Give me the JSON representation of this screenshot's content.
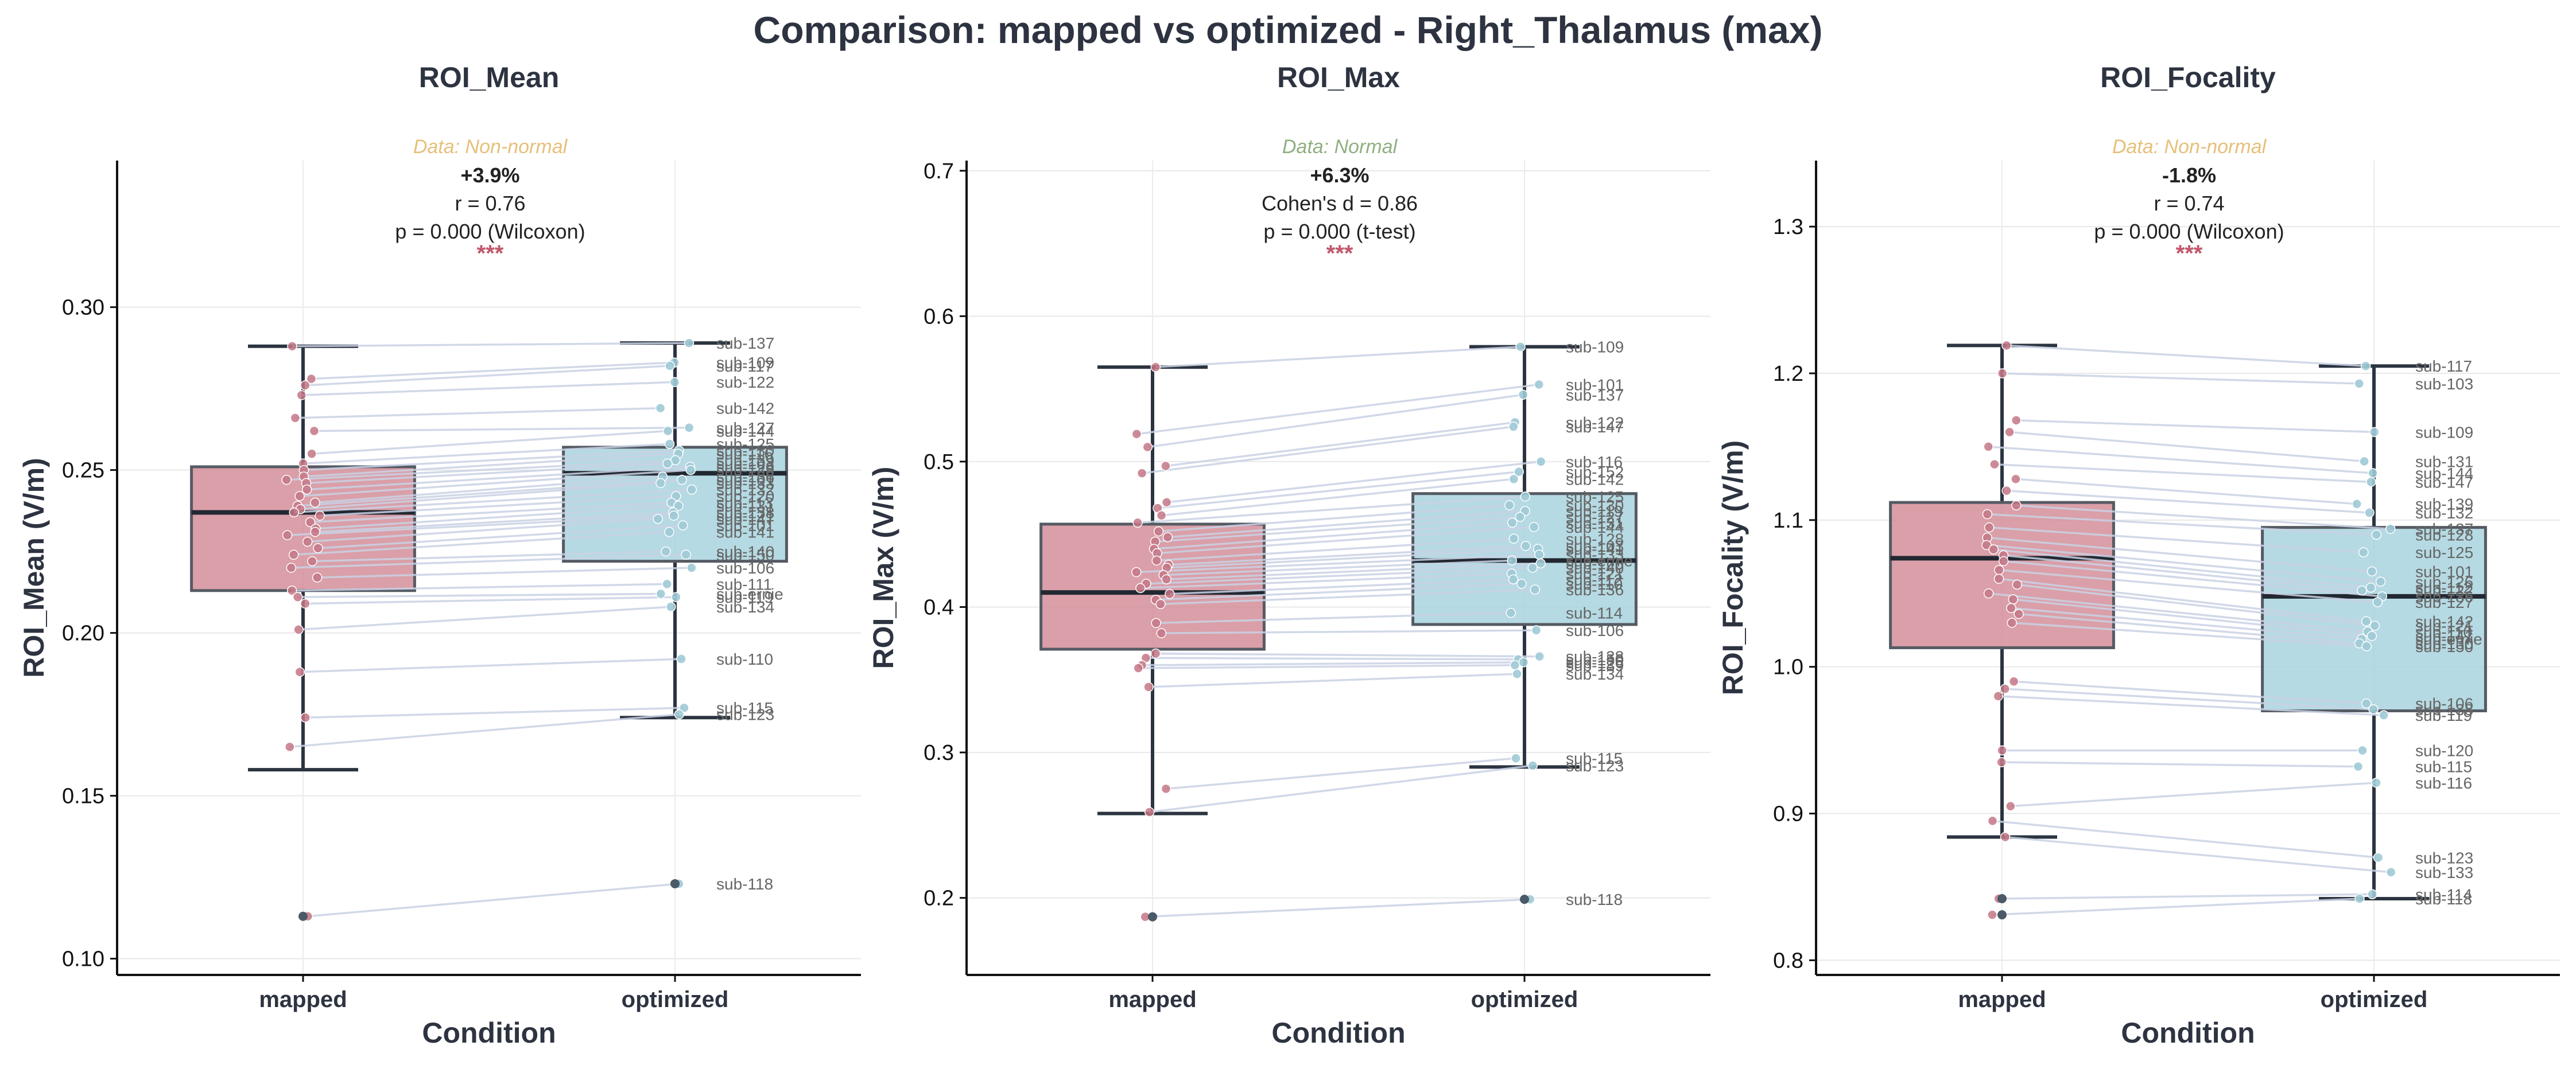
{
  "figure": {
    "title": "Comparison: mapped vs optimized - Right_Thalamus (max)",
    "colors": {
      "mapped": "#d48e99",
      "optimized": "#a9d3de",
      "mapped_point": "#c47786",
      "optimized_point": "#9fcad6",
      "outlier": "#4a5a66",
      "pair_line": "#c9d1e4",
      "normal_note": "#8fb080",
      "nonnormal_note": "#e6c07a",
      "stars": "#c0576a"
    }
  },
  "chart_data": [
    {
      "type": "box",
      "title": "ROI_Mean",
      "xlabel": "Condition",
      "ylabel": "ROI_Mean (V/m)",
      "categories": [
        "mapped",
        "optimized"
      ],
      "ylim": [
        0.095,
        0.345
      ],
      "yticks": [
        0.1,
        0.15,
        0.2,
        0.25,
        0.3
      ],
      "ytick_labels": [
        "0.10",
        "0.15",
        "0.20",
        "0.25",
        "0.30"
      ],
      "normality_note": "Data: Non-normal",
      "normal": false,
      "stats": [
        "+3.9%",
        "r = 0.76",
        "p = 0.000 (Wilcoxon)"
      ],
      "significance": "***",
      "boxes": [
        {
          "name": "mapped",
          "q1": 0.213,
          "median": 0.237,
          "q3": 0.251,
          "whisker_low": 0.158,
          "whisker_high": 0.288
        },
        {
          "name": "optimized",
          "q1": 0.222,
          "median": 0.249,
          "q3": 0.257,
          "whisker_low": 0.174,
          "whisker_high": 0.289
        }
      ],
      "pairs": [
        {
          "label": "sub-137",
          "mapped": 0.288,
          "optimized": 0.289
        },
        {
          "label": "sub-109",
          "mapped": 0.278,
          "optimized": 0.283
        },
        {
          "label": "sub-117",
          "mapped": 0.276,
          "optimized": 0.282
        },
        {
          "label": "sub-122",
          "mapped": 0.273,
          "optimized": 0.277
        },
        {
          "label": "sub-142",
          "mapped": 0.266,
          "optimized": 0.269
        },
        {
          "label": "sub-127",
          "mapped": 0.262,
          "optimized": 0.263
        },
        {
          "label": "sub-144",
          "mapped": 0.255,
          "optimized": 0.262
        },
        {
          "label": "sub-125",
          "mapped": 0.252,
          "optimized": 0.258
        },
        {
          "label": "sub-130",
          "mapped": 0.25,
          "optimized": 0.256
        },
        {
          "label": "sub-116",
          "mapped": 0.248,
          "optimized": 0.255
        },
        {
          "label": "sub-139",
          "mapped": 0.247,
          "optimized": 0.253
        },
        {
          "label": "sub-103",
          "mapped": 0.246,
          "optimized": 0.252
        },
        {
          "label": "sub-126",
          "mapped": 0.244,
          "optimized": 0.251
        },
        {
          "label": "sub-128",
          "mapped": 0.242,
          "optimized": 0.25
        },
        {
          "label": "sub-136",
          "mapped": 0.24,
          "optimized": 0.248
        },
        {
          "label": "sub-101",
          "mapped": 0.239,
          "optimized": 0.247
        },
        {
          "label": "sub-133",
          "mapped": 0.238,
          "optimized": 0.246
        },
        {
          "label": "sub-132",
          "mapped": 0.237,
          "optimized": 0.244
        },
        {
          "label": "sub-120",
          "mapped": 0.236,
          "optimized": 0.242
        },
        {
          "label": "sub-113",
          "mapped": 0.234,
          "optimized": 0.24
        },
        {
          "label": "sub-131",
          "mapped": 0.232,
          "optimized": 0.239
        },
        {
          "label": "sub-138",
          "mapped": 0.231,
          "optimized": 0.237
        },
        {
          "label": "sub-121",
          "mapped": 0.23,
          "optimized": 0.236
        },
        {
          "label": "sub-147",
          "mapped": 0.228,
          "optimized": 0.235
        },
        {
          "label": "sub-101",
          "mapped": 0.226,
          "optimized": 0.233
        },
        {
          "label": "sub-141",
          "mapped": 0.224,
          "optimized": 0.231
        },
        {
          "label": "sub-140",
          "mapped": 0.222,
          "optimized": 0.225
        },
        {
          "label": "sub-150",
          "mapped": 0.22,
          "optimized": 0.224
        },
        {
          "label": "sub-106",
          "mapped": 0.217,
          "optimized": 0.22
        },
        {
          "label": "sub-111",
          "mapped": 0.213,
          "optimized": 0.215
        },
        {
          "label": "sub-ernie",
          "mapped": 0.211,
          "optimized": 0.212
        },
        {
          "label": "sub-119",
          "mapped": 0.209,
          "optimized": 0.211
        },
        {
          "label": "sub-134",
          "mapped": 0.201,
          "optimized": 0.208
        },
        {
          "label": "sub-110",
          "mapped": 0.188,
          "optimized": 0.192
        },
        {
          "label": "sub-115",
          "mapped": 0.174,
          "optimized": 0.177
        },
        {
          "label": "sub-123",
          "mapped": 0.165,
          "optimized": 0.175
        },
        {
          "label": "sub-118",
          "mapped": 0.113,
          "optimized": 0.123
        }
      ]
    },
    {
      "type": "box",
      "title": "ROI_Max",
      "xlabel": "Condition",
      "ylabel": "ROI_Max (V/m)",
      "categories": [
        "mapped",
        "optimized"
      ],
      "ylim": [
        0.147,
        0.707
      ],
      "yticks": [
        0.2,
        0.3,
        0.4,
        0.5,
        0.6,
        0.7
      ],
      "ytick_labels": [
        "0.2",
        "0.3",
        "0.4",
        "0.5",
        "0.6",
        "0.7"
      ],
      "normality_note": "Data: Normal",
      "normal": true,
      "stats": [
        "+6.3%",
        "Cohen's d = 0.86",
        "p = 0.000 (t-test)"
      ],
      "significance": "***",
      "boxes": [
        {
          "name": "mapped",
          "q1": 0.371,
          "median": 0.41,
          "q3": 0.457,
          "whisker_low": 0.258,
          "whisker_high": 0.565
        },
        {
          "name": "optimized",
          "q1": 0.388,
          "median": 0.432,
          "q3": 0.478,
          "whisker_low": 0.29,
          "whisker_high": 0.579
        }
      ],
      "pairs": [
        {
          "label": "sub-109",
          "mapped": 0.565,
          "optimized": 0.579
        },
        {
          "label": "sub-101",
          "mapped": 0.519,
          "optimized": 0.553
        },
        {
          "label": "sub-137",
          "mapped": 0.51,
          "optimized": 0.546
        },
        {
          "label": "sub-122",
          "mapped": 0.497,
          "optimized": 0.527
        },
        {
          "label": "sub-147",
          "mapped": 0.492,
          "optimized": 0.524
        },
        {
          "label": "sub-116",
          "mapped": 0.472,
          "optimized": 0.5
        },
        {
          "label": "sub-152",
          "mapped": 0.468,
          "optimized": 0.493
        },
        {
          "label": "sub-142",
          "mapped": 0.463,
          "optimized": 0.488
        },
        {
          "label": "sub-125",
          "mapped": 0.458,
          "optimized": 0.476
        },
        {
          "label": "sub-130",
          "mapped": 0.452,
          "optimized": 0.47
        },
        {
          "label": "sub-119",
          "mapped": 0.448,
          "optimized": 0.466
        },
        {
          "label": "sub-127",
          "mapped": 0.445,
          "optimized": 0.462
        },
        {
          "label": "sub-131",
          "mapped": 0.44,
          "optimized": 0.458
        },
        {
          "label": "sub-144",
          "mapped": 0.437,
          "optimized": 0.455
        },
        {
          "label": "sub-128",
          "mapped": 0.432,
          "optimized": 0.447
        },
        {
          "label": "sub-103",
          "mapped": 0.429,
          "optimized": 0.442
        },
        {
          "label": "sub-141",
          "mapped": 0.427,
          "optimized": 0.44
        },
        {
          "label": "sub-133",
          "mapped": 0.424,
          "optimized": 0.436
        },
        {
          "label": "sub-ernie",
          "mapped": 0.422,
          "optimized": 0.432
        },
        {
          "label": "sub-120",
          "mapped": 0.419,
          "optimized": 0.43
        },
        {
          "label": "sub-140",
          "mapped": 0.416,
          "optimized": 0.427
        },
        {
          "label": "sub-121",
          "mapped": 0.413,
          "optimized": 0.423
        },
        {
          "label": "sub-112",
          "mapped": 0.409,
          "optimized": 0.419
        },
        {
          "label": "sub-110",
          "mapped": 0.405,
          "optimized": 0.416
        },
        {
          "label": "sub-136",
          "mapped": 0.402,
          "optimized": 0.412
        },
        {
          "label": "sub-114",
          "mapped": 0.389,
          "optimized": 0.396
        },
        {
          "label": "sub-106",
          "mapped": 0.382,
          "optimized": 0.384
        },
        {
          "label": "sub-138",
          "mapped": 0.368,
          "optimized": 0.366
        },
        {
          "label": "sub-150",
          "mapped": 0.365,
          "optimized": 0.364
        },
        {
          "label": "sub-126",
          "mapped": 0.36,
          "optimized": 0.362
        },
        {
          "label": "sub-139",
          "mapped": 0.358,
          "optimized": 0.36
        },
        {
          "label": "sub-134",
          "mapped": 0.345,
          "optimized": 0.354
        },
        {
          "label": "sub-115",
          "mapped": 0.275,
          "optimized": 0.296
        },
        {
          "label": "sub-123",
          "mapped": 0.259,
          "optimized": 0.291
        },
        {
          "label": "sub-118",
          "mapped": 0.187,
          "optimized": 0.199
        }
      ]
    },
    {
      "type": "box",
      "title": "ROI_Focality",
      "xlabel": "Condition",
      "ylabel": "ROI_Focality (V/m)",
      "categories": [
        "mapped",
        "optimized"
      ],
      "ylim": [
        0.79,
        1.345
      ],
      "yticks": [
        0.8,
        0.9,
        1.0,
        1.1,
        1.2,
        1.3
      ],
      "ytick_labels": [
        "0.8",
        "0.9",
        "1.0",
        "1.1",
        "1.2",
        "1.3"
      ],
      "normality_note": "Data: Non-normal",
      "normal": false,
      "stats": [
        "-1.8%",
        "r = 0.74",
        "p = 0.000 (Wilcoxon)"
      ],
      "significance": "***",
      "boxes": [
        {
          "name": "mapped",
          "q1": 1.013,
          "median": 1.074,
          "q3": 1.112,
          "whisker_low": 0.884,
          "whisker_high": 1.219
        },
        {
          "name": "optimized",
          "q1": 0.97,
          "median": 1.048,
          "q3": 1.095,
          "whisker_low": 0.842,
          "whisker_high": 1.205
        }
      ],
      "pairs": [
        {
          "label": "sub-117",
          "mapped": 1.219,
          "optimized": 1.205
        },
        {
          "label": "sub-103",
          "mapped": 1.2,
          "optimized": 1.193
        },
        {
          "label": "sub-109",
          "mapped": 1.168,
          "optimized": 1.16
        },
        {
          "label": "sub-131",
          "mapped": 1.16,
          "optimized": 1.14
        },
        {
          "label": "sub-144",
          "mapped": 1.15,
          "optimized": 1.132
        },
        {
          "label": "sub-147",
          "mapped": 1.138,
          "optimized": 1.126
        },
        {
          "label": "sub-139",
          "mapped": 1.128,
          "optimized": 1.111
        },
        {
          "label": "sub-132",
          "mapped": 1.12,
          "optimized": 1.105
        },
        {
          "label": "sub-137",
          "mapped": 1.11,
          "optimized": 1.094
        },
        {
          "label": "sub-128",
          "mapped": 1.104,
          "optimized": 1.09
        },
        {
          "label": "sub-125",
          "mapped": 1.095,
          "optimized": 1.078
        },
        {
          "label": "sub-101",
          "mapped": 1.088,
          "optimized": 1.065
        },
        {
          "label": "sub-126",
          "mapped": 1.083,
          "optimized": 1.058
        },
        {
          "label": "sub-112",
          "mapped": 1.08,
          "optimized": 1.054
        },
        {
          "label": "sub-122",
          "mapped": 1.076,
          "optimized": 1.052
        },
        {
          "label": "sub-136",
          "mapped": 1.072,
          "optimized": 1.048
        },
        {
          "label": "sub-127",
          "mapped": 1.066,
          "optimized": 1.044
        },
        {
          "label": "sub-142",
          "mapped": 1.06,
          "optimized": 1.031
        },
        {
          "label": "sub-121",
          "mapped": 1.056,
          "optimized": 1.028
        },
        {
          "label": "sub-110",
          "mapped": 1.05,
          "optimized": 1.024
        },
        {
          "label": "sub-141",
          "mapped": 1.046,
          "optimized": 1.021
        },
        {
          "label": "sub-ernie",
          "mapped": 1.04,
          "optimized": 1.019
        },
        {
          "label": "sub-130",
          "mapped": 1.036,
          "optimized": 1.016
        },
        {
          "label": "sub-150",
          "mapped": 1.03,
          "optimized": 1.014
        },
        {
          "label": "sub-106",
          "mapped": 0.99,
          "optimized": 0.975
        },
        {
          "label": "sub-138",
          "mapped": 0.985,
          "optimized": 0.971
        },
        {
          "label": "sub-119",
          "mapped": 0.98,
          "optimized": 0.967
        },
        {
          "label": "sub-120",
          "mapped": 0.943,
          "optimized": 0.943
        },
        {
          "label": "sub-115",
          "mapped": 0.935,
          "optimized": 0.932
        },
        {
          "label": "sub-116",
          "mapped": 0.905,
          "optimized": 0.921
        },
        {
          "label": "sub-123",
          "mapped": 0.895,
          "optimized": 0.87
        },
        {
          "label": "sub-133",
          "mapped": 0.884,
          "optimized": 0.86
        },
        {
          "label": "sub-114",
          "mapped": 0.842,
          "optimized": 0.845
        },
        {
          "label": "sub-118",
          "mapped": 0.831,
          "optimized": 0.842
        }
      ]
    }
  ]
}
